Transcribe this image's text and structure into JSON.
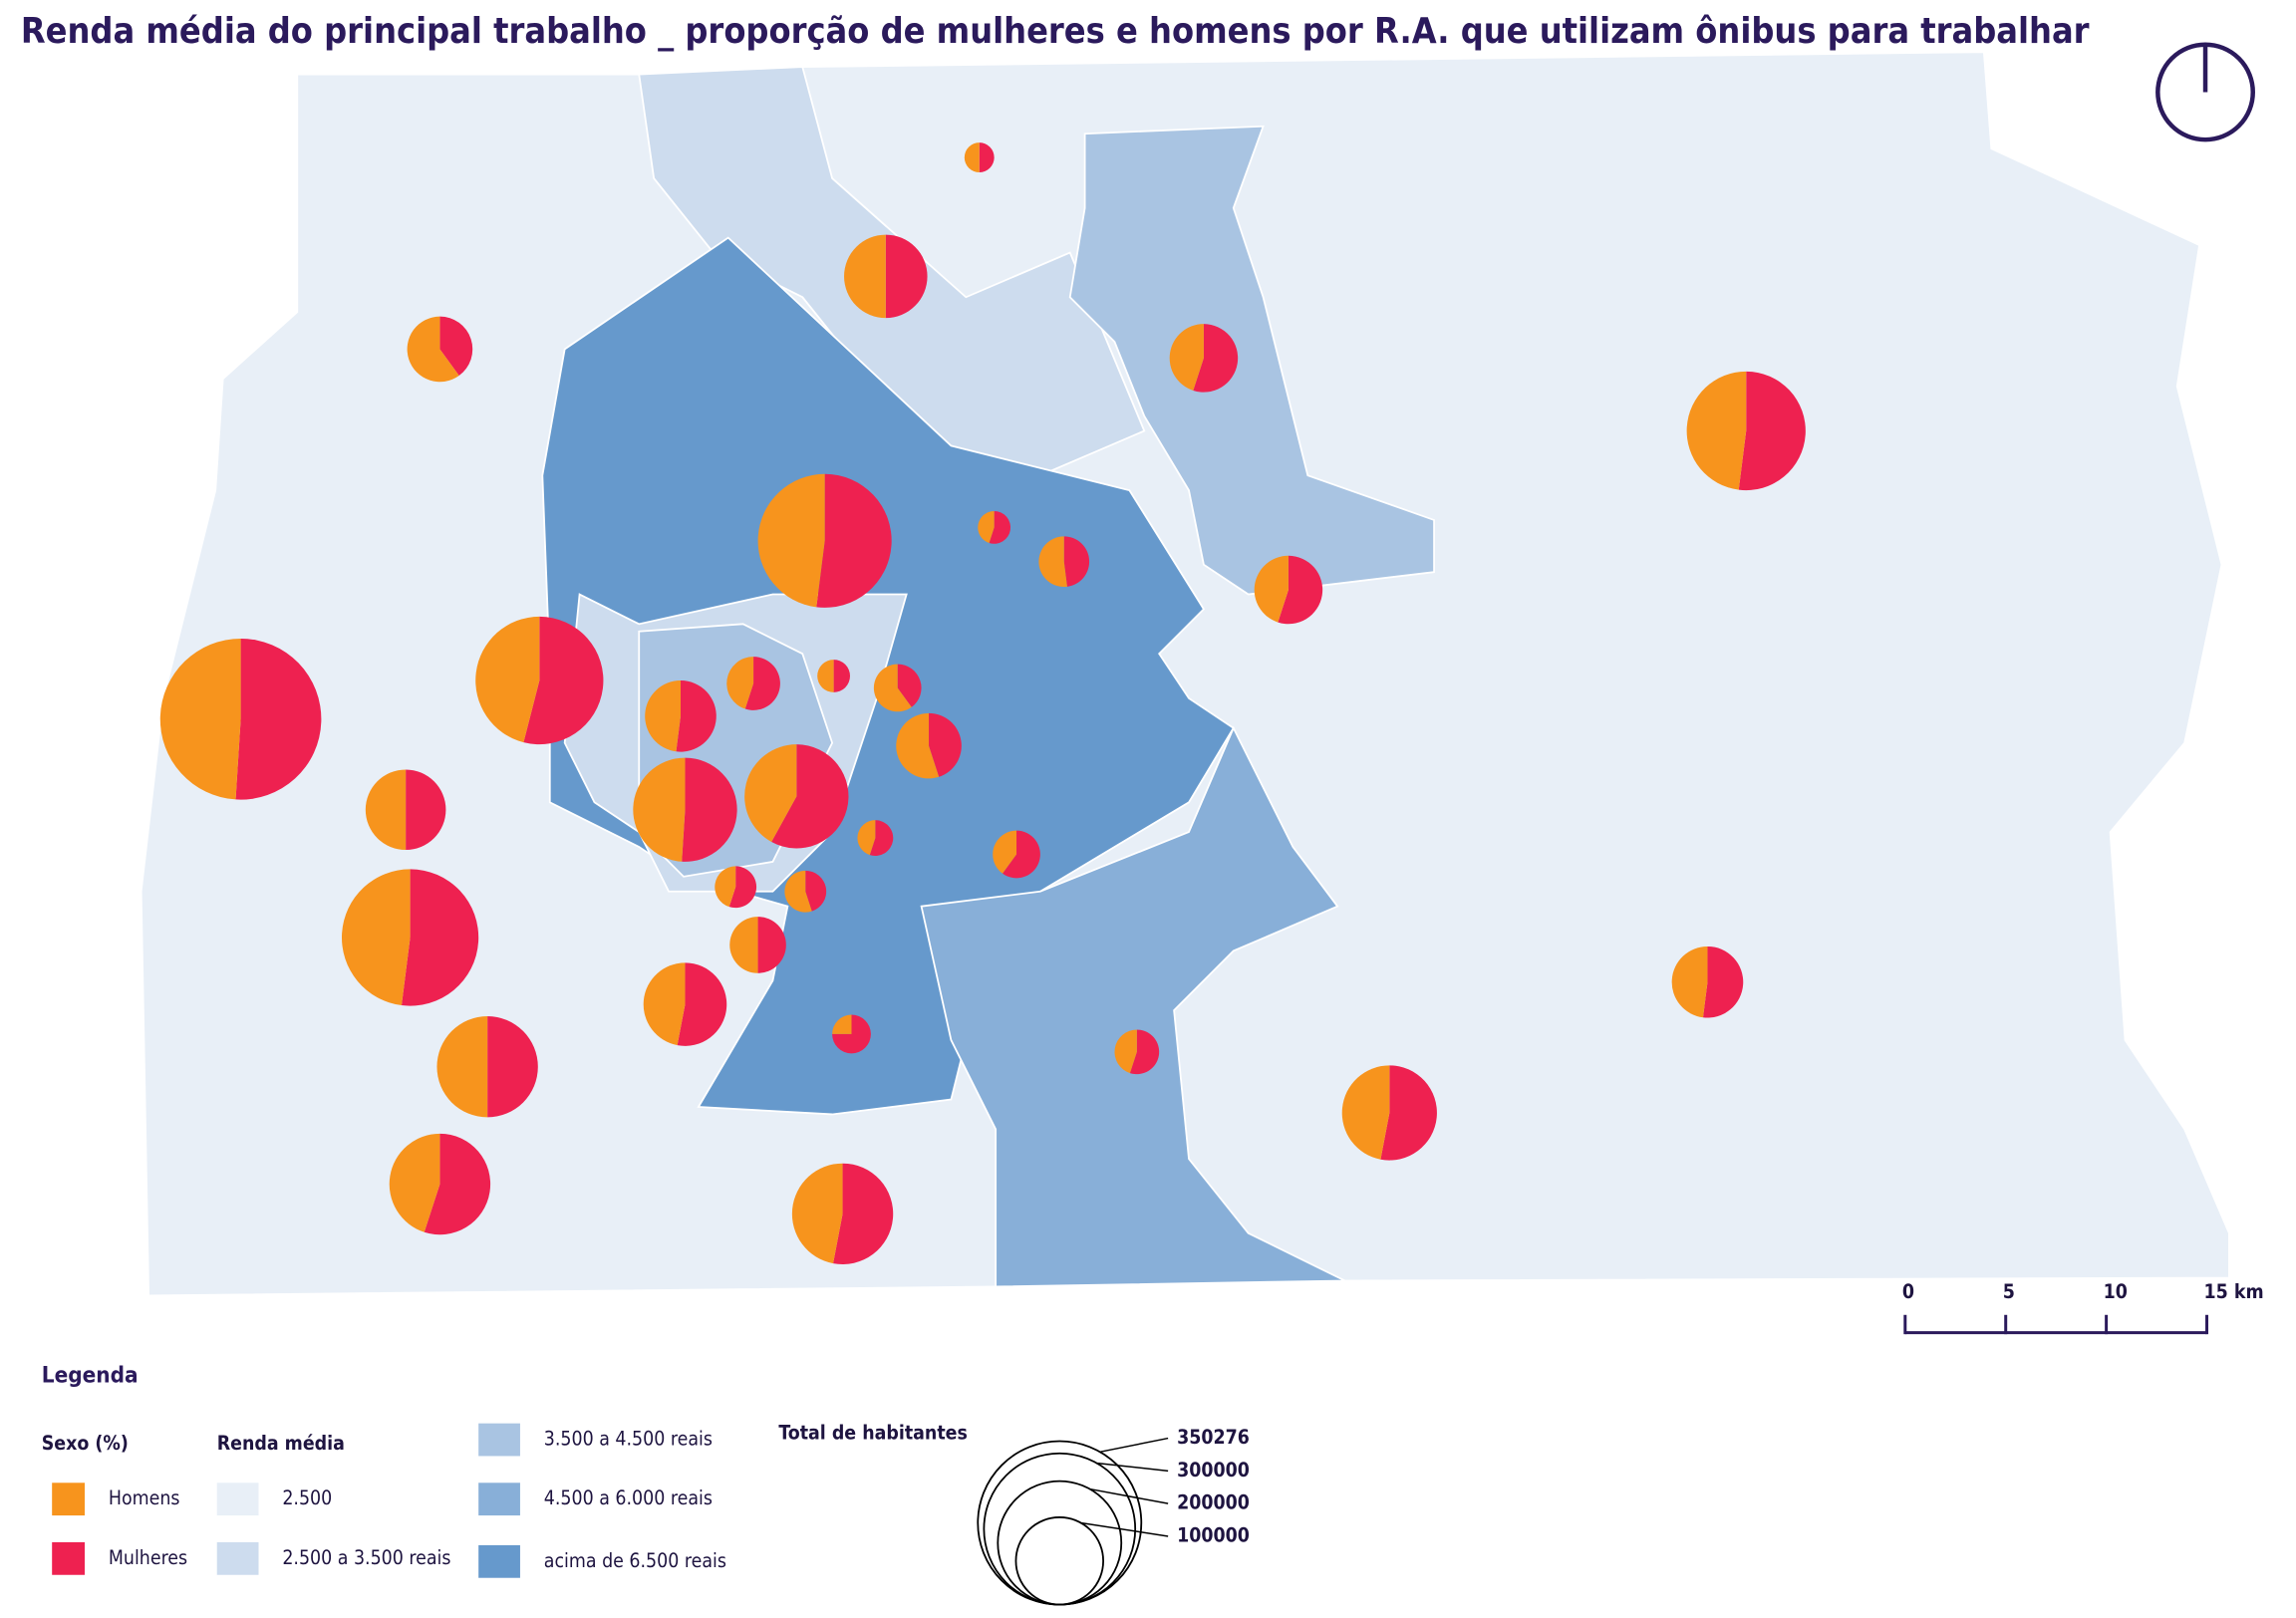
{
  "title": "Renda média do principal trabalho _ proporção de mulheres e homens por R.A. que utilizam ônibus para trabalhar",
  "scale_bar": {
    "ticks": [
      0,
      5,
      10,
      {
        "value": 15,
        "label": "15 km"
      }
    ]
  },
  "legend": {
    "title": "Legenda",
    "sexo": {
      "title": "Sexo (%)",
      "items": [
        {
          "label": "Homens",
          "color": "#f7941d"
        },
        {
          "label": "Mulheres",
          "color": "#ee2150"
        }
      ]
    },
    "renda": {
      "title": "Renda média",
      "items": [
        {
          "label": "2.500",
          "color": "#e8eff7"
        },
        {
          "label": "2.500 a 3.500 reais",
          "color": "#cddcee"
        },
        {
          "label": "3.500 a 4.500 reais",
          "color": "#a9c4e2"
        },
        {
          "label": "4.500 a 6.000 reais",
          "color": "#88afd8"
        },
        {
          "label": "acima de 6.500 reais",
          "color": "#6699cc"
        }
      ]
    },
    "total": {
      "title": "Total de habitantes",
      "values": [
        350276,
        300000,
        200000,
        100000
      ]
    }
  },
  "pies": [
    {
      "population": 11600,
      "homens": 50,
      "mulheres": 50
    },
    {
      "population": 90800,
      "homens": 50,
      "mulheres": 50
    },
    {
      "population": 56000,
      "homens": 60,
      "mulheres": 40
    },
    {
      "population": 61000,
      "homens": 45,
      "mulheres": 55
    },
    {
      "population": 185000,
      "homens": 48,
      "mulheres": 52
    },
    {
      "population": 234000,
      "homens": 48,
      "mulheres": 52
    },
    {
      "population": 14000,
      "homens": 45,
      "mulheres": 55
    },
    {
      "population": 33400,
      "homens": 52,
      "mulheres": 48
    },
    {
      "population": 61000,
      "homens": 45,
      "mulheres": 55
    },
    {
      "population": 340000,
      "homens": 49,
      "mulheres": 51
    },
    {
      "population": 214000,
      "homens": 46,
      "mulheres": 54
    },
    {
      "population": 66700,
      "homens": 48,
      "mulheres": 52
    },
    {
      "population": 37500,
      "homens": 45,
      "mulheres": 55
    },
    {
      "population": 14000,
      "homens": 50,
      "mulheres": 50
    },
    {
      "population": 29600,
      "homens": 60,
      "mulheres": 40
    },
    {
      "population": 56000,
      "homens": 55,
      "mulheres": 45
    },
    {
      "population": 84500,
      "homens": 50,
      "mulheres": 50
    },
    {
      "population": 141700,
      "homens": 49,
      "mulheres": 51
    },
    {
      "population": 141700,
      "homens": 42,
      "mulheres": 58
    },
    {
      "population": 16700,
      "homens": 45,
      "mulheres": 55
    },
    {
      "population": 29600,
      "homens": 40,
      "mulheres": 60
    },
    {
      "population": 245000,
      "homens": 48,
      "mulheres": 52
    },
    {
      "population": 22700,
      "homens": 45,
      "mulheres": 55
    },
    {
      "population": 22700,
      "homens": 55,
      "mulheres": 45
    },
    {
      "population": 41800,
      "homens": 50,
      "mulheres": 50
    },
    {
      "population": 90800,
      "homens": 47,
      "mulheres": 53
    },
    {
      "population": 133700,
      "homens": 50,
      "mulheres": 50
    },
    {
      "population": 19600,
      "homens": 25,
      "mulheres": 75
    },
    {
      "population": 26000,
      "homens": 45,
      "mulheres": 55
    },
    {
      "population": 118000,
      "homens": 47,
      "mulheres": 53
    },
    {
      "population": 66700,
      "homens": 48,
      "mulheres": 52
    },
    {
      "population": 133700,
      "homens": 45,
      "mulheres": 55
    },
    {
      "population": 133700,
      "homens": 47,
      "mulheres": 53
    }
  ]
}
